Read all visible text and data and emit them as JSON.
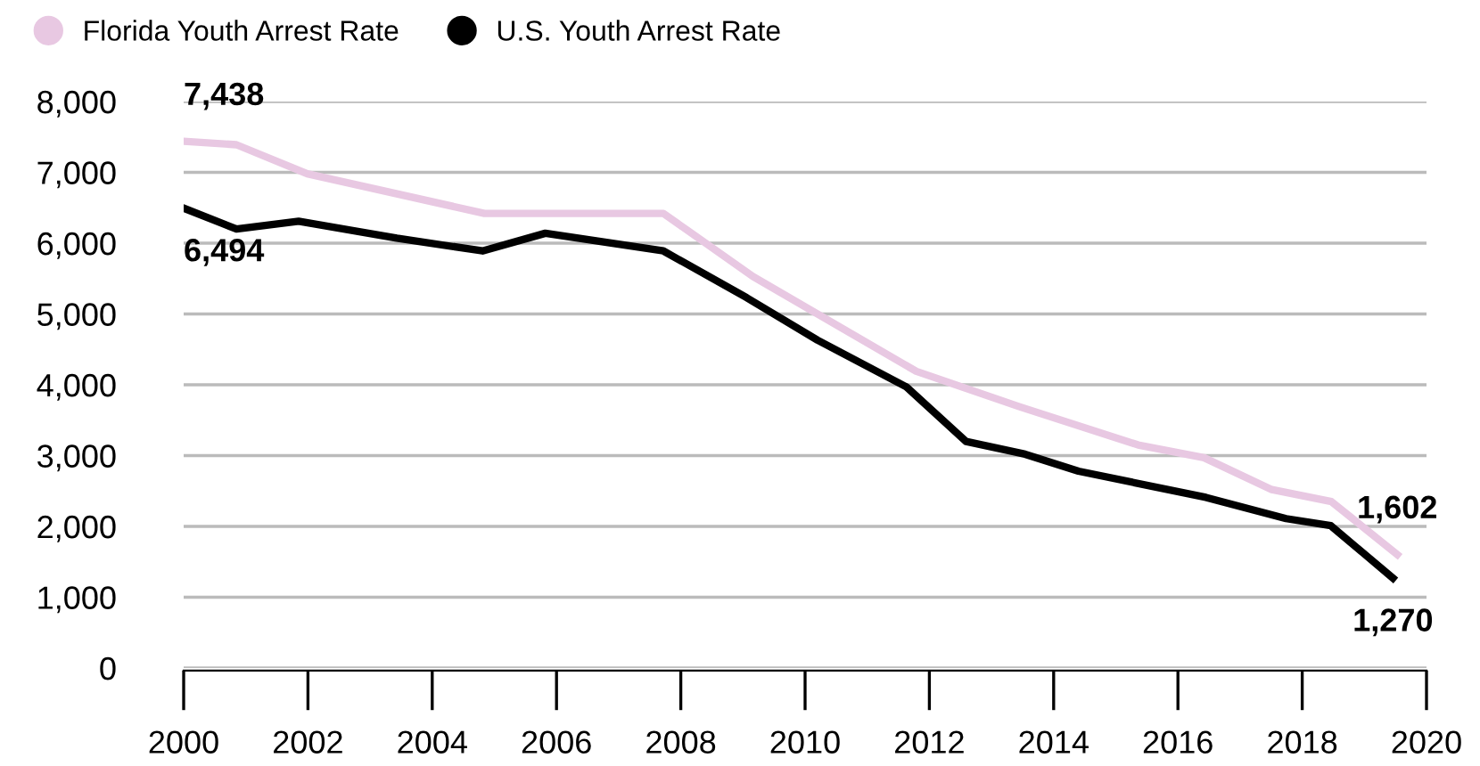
{
  "chart_data": {
    "type": "line",
    "series": [
      {
        "name": "Florida Youth Arrest Rate",
        "color": "#e8c8e2",
        "x": [
          2000,
          2000.85,
          2001.99,
          2004.84,
          2007.72,
          2009.16,
          2011.79,
          2013.45,
          2015.36,
          2016.42,
          2017.51,
          2018.47,
          2019.53
        ],
        "values": [
          7438,
          7390,
          6980,
          6420,
          6420,
          5530,
          4190,
          3690,
          3150,
          2970,
          2520,
          2350,
          1602
        ]
      },
      {
        "name": "U.S. Youth Arrest Rate",
        "color": "#000000",
        "x": [
          2000,
          2000.85,
          2001.85,
          2003.43,
          2004.81,
          2005.82,
          2007.72,
          2009.06,
          2010.2,
          2011.63,
          2012.59,
          2013.54,
          2014.4,
          2016.45,
          2017.74,
          2018.46,
          2019.46
        ],
        "values": [
          6494,
          6200,
          6310,
          6070,
          5890,
          6140,
          5890,
          5230,
          4630,
          3970,
          3200,
          3020,
          2780,
          2410,
          2110,
          2010,
          1270
        ]
      }
    ],
    "annotations": [
      {
        "text": "7,438",
        "x": 2000,
        "y": 7438
      },
      {
        "text": "6,494",
        "x": 2000,
        "y": 6494
      },
      {
        "text": "1,602",
        "x": 2019.53,
        "y": 1602
      },
      {
        "text": "1,270",
        "x": 2019.46,
        "y": 1270
      }
    ],
    "xlim": [
      2000,
      2020
    ],
    "xticks": [
      2000,
      2002,
      2004,
      2006,
      2008,
      2010,
      2012,
      2014,
      2016,
      2018,
      2020
    ],
    "ylim": [
      0,
      8000
    ],
    "yticks": [
      {
        "value": 0,
        "label": "0"
      },
      {
        "value": 1000,
        "label": "1,000"
      },
      {
        "value": 2000,
        "label": "2,000"
      },
      {
        "value": 3000,
        "label": "3,000"
      },
      {
        "value": 4000,
        "label": "4,000"
      },
      {
        "value": 5000,
        "label": "5,000"
      },
      {
        "value": 6000,
        "label": "6,000"
      },
      {
        "value": 7000,
        "label": "7,000"
      },
      {
        "value": 8000,
        "label": "8,000"
      }
    ],
    "grid": "y",
    "legend": "top left",
    "marker": "none",
    "line_style": "solid"
  }
}
